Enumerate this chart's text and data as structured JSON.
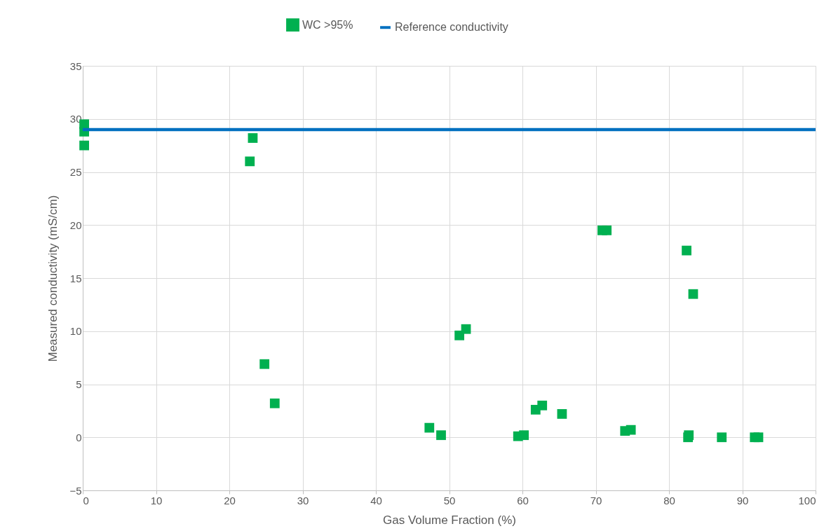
{
  "chart_data": {
    "type": "scatter",
    "xlabel": "Gas Volume Fraction (%)",
    "ylabel": "Measured conductivity (mS/cm)",
    "xlim": [
      0,
      100
    ],
    "xticks": [
      0,
      10,
      20,
      30,
      40,
      50,
      60,
      70,
      80,
      90,
      100
    ],
    "ylim": [
      -5,
      35
    ],
    "yticks": [
      -5,
      0,
      5,
      10,
      15,
      20,
      25,
      30,
      35
    ],
    "grid": true,
    "legend": "top",
    "series": [
      {
        "name": "WC >95%",
        "marker": "square",
        "color": "#00b050",
        "x": [
          0.2,
          0.2,
          0.2,
          23.2,
          22.8,
          24.8,
          26.2,
          47.3,
          48.9,
          51.4,
          52.3,
          59.4,
          60.2,
          61.8,
          62.7,
          65.4,
          70.9,
          71.5,
          74.0,
          74.8,
          82.4,
          83.3,
          82.6,
          82.7,
          87.2,
          91.7,
          92.2
        ],
        "values": [
          29.5,
          28.8,
          27.5,
          28.2,
          26.0,
          6.9,
          3.2,
          0.9,
          0.2,
          9.6,
          10.2,
          0.1,
          0.2,
          2.6,
          3.0,
          2.2,
          19.5,
          19.5,
          0.6,
          0.7,
          17.6,
          13.5,
          0,
          0.2,
          0,
          0,
          0
        ]
      },
      {
        "name": "Reference conductivity",
        "type": "line",
        "marker": "none",
        "color": "#0070c0",
        "x": [
          0,
          100
        ],
        "values": [
          29,
          29
        ]
      }
    ]
  }
}
